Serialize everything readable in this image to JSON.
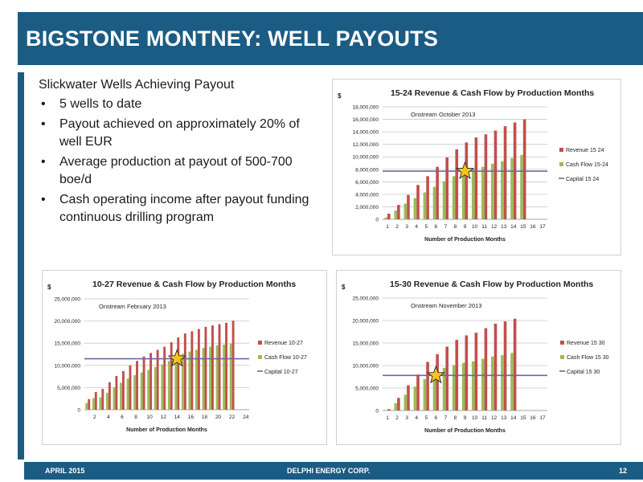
{
  "title": "BIGSTONE MONTNEY:  WELL PAYOUTS",
  "footer": {
    "date": "APRIL 2015",
    "company": "DELPHI ENERGY CORP.",
    "page": "12"
  },
  "bullets": {
    "heading": "Slickwater Wells Achieving Payout",
    "items": [
      "5 wells to date",
      "Payout achieved on approximately 20% of well EUR",
      "Average production at payout of 500-700 boe/d",
      "Cash operating income after payout funding continuous drilling program"
    ]
  },
  "colors": {
    "brand": "#1b5c84",
    "revenue": "#c0504d",
    "cashflow": "#9bbb59",
    "capital": "#7064a2",
    "star": "#f5c518"
  },
  "chart_data": [
    {
      "id": "15-24",
      "type": "bar",
      "title": "15-24 Revenue & Cash Flow by Production Months",
      "ylabel": "$",
      "xlabel": "Number of Production Months",
      "annotation": "Onstream October 2013",
      "x_ticks": [
        1,
        2,
        3,
        4,
        5,
        6,
        7,
        8,
        9,
        10,
        11,
        12,
        13,
        14,
        15,
        16,
        17
      ],
      "y_ticks": [
        "0",
        "2,000,000",
        "4,000,000",
        "6,000,000",
        "8,000,000",
        "10,000,000",
        "12,000,000",
        "14,000,000",
        "16,000,000",
        "18,000,000"
      ],
      "ylim": [
        0,
        18000000
      ],
      "series": [
        {
          "name": "Revenue 15 24",
          "kind": "bar",
          "values": [
            900000,
            2300000,
            3900000,
            5500000,
            6900000,
            8400000,
            9900000,
            11200000,
            12300000,
            13100000,
            13600000,
            14200000,
            14900000,
            15500000,
            16000000
          ]
        },
        {
          "name": "Cash Flow 15-24",
          "kind": "bar",
          "values": [
            300000,
            1400000,
            2500000,
            3400000,
            4300000,
            5200000,
            6100000,
            6900000,
            7500000,
            8000000,
            8400000,
            8900000,
            9300000,
            9800000,
            10300000
          ]
        },
        {
          "name": "Capital 15 24",
          "kind": "line",
          "value": 7700000
        }
      ],
      "payout_month": 9
    },
    {
      "id": "10-27",
      "type": "bar",
      "title": "10-27 Revenue & Cash Flow by Production Months",
      "ylabel": "$",
      "xlabel": "Number of Production Months",
      "annotation": "Onstream February 2013",
      "x_ticks": [
        2,
        4,
        6,
        8,
        10,
        12,
        14,
        16,
        18,
        20,
        22,
        24
      ],
      "y_ticks": [
        "0",
        "5,000,000",
        "10,000,000",
        "15,000,000",
        "20,000,000",
        "25,000,000"
      ],
      "ylim": [
        0,
        25000000
      ],
      "series": [
        {
          "name": "Revenue 10-27",
          "kind": "bar",
          "values": [
            2400000,
            4000000,
            4700000,
            6200000,
            7600000,
            8700000,
            10000000,
            11000000,
            12000000,
            12800000,
            13500000,
            14200000,
            15200000,
            16300000,
            17200000,
            17700000,
            18200000,
            18700000,
            19000000,
            19300000,
            19600000,
            20100000
          ]
        },
        {
          "name": "Cash Flow 10-27",
          "kind": "bar",
          "values": [
            1500000,
            2600000,
            2800000,
            3800000,
            5000000,
            6100000,
            7000000,
            7800000,
            8400000,
            9000000,
            9600000,
            10200000,
            11000000,
            11800000,
            12600000,
            13100000,
            13500000,
            13900000,
            14200000,
            14500000,
            14700000,
            14900000
          ]
        },
        {
          "name": "Capital 10-27",
          "kind": "line",
          "value": 11500000
        }
      ],
      "payout_month": 14
    },
    {
      "id": "15-30",
      "type": "bar",
      "title": "15-30 Revenue & Cash Flow by Production Months",
      "ylabel": "$",
      "xlabel": "Number of Production Months",
      "annotation": "Onstream November 2013",
      "x_ticks": [
        1,
        2,
        3,
        4,
        5,
        6,
        7,
        8,
        9,
        10,
        11,
        12,
        13,
        14,
        15,
        16,
        17
      ],
      "y_ticks": [
        "0",
        "5,000,000",
        "10,000,000",
        "15,000,000",
        "20,000,000",
        "25,000,000"
      ],
      "ylim": [
        0,
        25000000
      ],
      "series": [
        {
          "name": "Revenue 15 30",
          "kind": "bar",
          "values": [
            300000,
            2800000,
            5600000,
            8000000,
            10800000,
            12500000,
            14200000,
            15700000,
            16700000,
            17300000,
            18300000,
            19300000,
            19800000,
            20400000
          ]
        },
        {
          "name": "Cash Flow 15 30",
          "kind": "bar",
          "values": [
            100000,
            1600000,
            3500000,
            5300000,
            7000000,
            8300000,
            9500000,
            10100000,
            10600000,
            10900000,
            11500000,
            12000000,
            12300000,
            12800000
          ]
        },
        {
          "name": "Capital 15 30",
          "kind": "line",
          "value": 7800000
        }
      ],
      "payout_month": 6
    }
  ]
}
